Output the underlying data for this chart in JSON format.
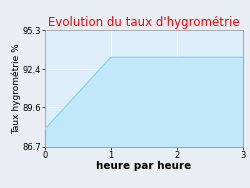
{
  "title": "Evolution du taux d'hygrométrie",
  "title_color": "#ff0000",
  "xlabel": "heure par heure",
  "ylabel": "Taux hygrométrie %",
  "x_data": [
    0,
    1,
    3
  ],
  "y_data": [
    88.0,
    93.3,
    93.3
  ],
  "ylim": [
    86.7,
    95.3
  ],
  "xlim": [
    0,
    3
  ],
  "yticks": [
    86.7,
    89.6,
    92.4,
    95.3
  ],
  "xticks": [
    0,
    1,
    2,
    3
  ],
  "line_color": "#7dd4ed",
  "fill_color": "#c0e8f8",
  "bg_color": "#e8eef4",
  "plot_bg_color": "#ddeefa",
  "grid_color": "#ffffff",
  "title_fontsize": 8.5,
  "label_fontsize": 6.5,
  "tick_fontsize": 6,
  "xlabel_fontsize": 7.5,
  "xlabel_fontweight": "bold"
}
